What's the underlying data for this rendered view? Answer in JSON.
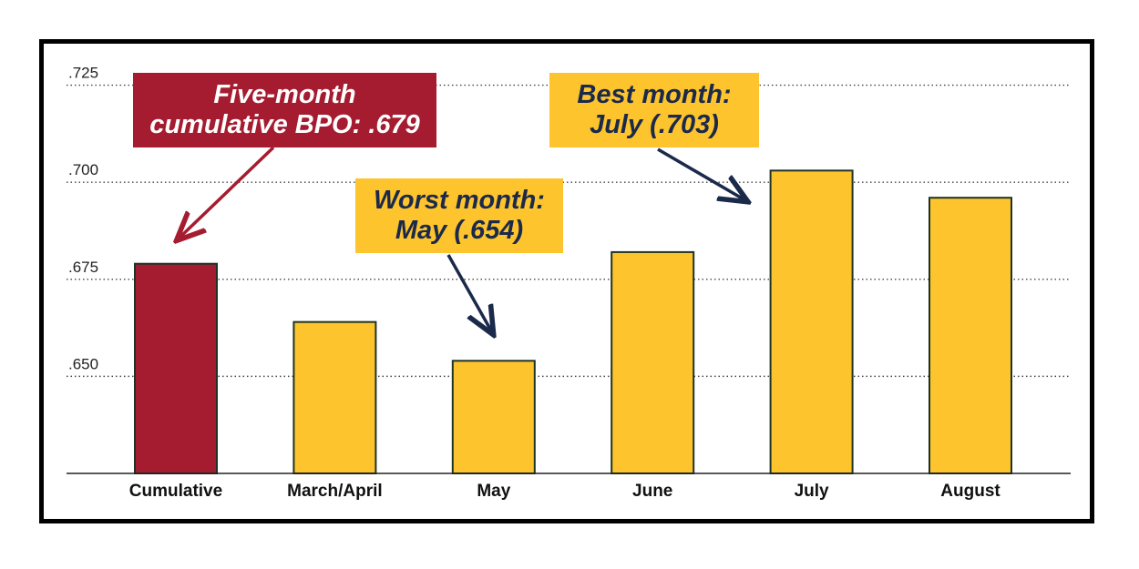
{
  "chart_data": {
    "type": "bar",
    "categories": [
      "Cumulative",
      "March/April",
      "May",
      "June",
      "July",
      "August"
    ],
    "values": [
      0.679,
      0.664,
      0.654,
      0.682,
      0.703,
      0.696
    ],
    "y_ticks": [
      ".650",
      ".675",
      ".700",
      ".725"
    ],
    "y_tick_values": [
      0.65,
      0.675,
      0.7,
      0.725
    ],
    "ylim": [
      0.625,
      0.727
    ],
    "grid": "dotted horizontal",
    "colors": {
      "highlight": "#a51c30",
      "bar": "#fdc42e",
      "bar_outline": "#1f3324",
      "arrow_red": "#a51c30",
      "arrow_navy": "#1b2a4a"
    },
    "annotations": [
      {
        "lines": [
          "Five-month",
          "cumulative BPO: .679"
        ],
        "category": "Cumulative"
      },
      {
        "lines": [
          "Worst month:",
          "May (.654)"
        ],
        "category": "May"
      },
      {
        "lines": [
          "Best month:",
          "July (.703)"
        ],
        "category": "July"
      }
    ]
  }
}
